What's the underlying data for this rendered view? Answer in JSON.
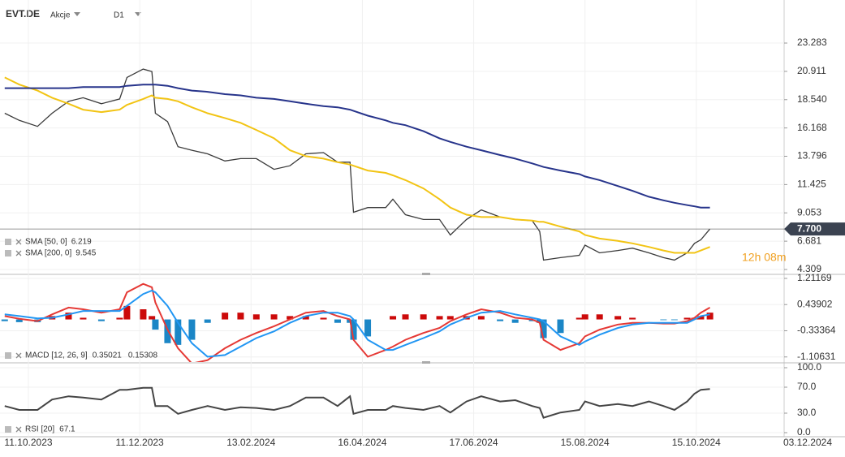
{
  "chart_data": [
    {
      "type": "line",
      "title": "EVT.DE",
      "subtitle": "Akcje",
      "timeframe": "D1",
      "x": [
        "2023-09-28",
        "2023-10-06",
        "2023-10-16",
        "2023-10-24",
        "2023-11-02",
        "2023-11-10",
        "2023-11-20",
        "2023-11-30",
        "2023-12-04",
        "2023-12-13",
        "2023-12-18",
        "2023-12-20",
        "2023-12-27",
        "2024-01-02",
        "2024-01-10",
        "2024-01-19",
        "2024-01-29",
        "2024-02-07",
        "2024-02-16",
        "2024-02-26",
        "2024-03-06",
        "2024-03-15",
        "2024-03-25",
        "2024-04-02",
        "2024-04-09",
        "2024-04-11",
        "2024-04-19",
        "2024-04-29",
        "2024-05-03",
        "2024-05-10",
        "2024-05-20",
        "2024-05-29",
        "2024-06-04",
        "2024-06-13",
        "2024-06-21",
        "2024-07-01",
        "2024-07-09",
        "2024-07-18",
        "2024-07-22",
        "2024-07-24",
        "2024-08-02",
        "2024-08-12",
        "2024-08-15",
        "2024-08-23",
        "2024-09-02",
        "2024-09-10",
        "2024-09-19",
        "2024-09-27",
        "2024-10-03",
        "2024-10-10",
        "2024-10-14",
        "2024-10-17",
        "2024-10-21"
      ],
      "series": [
        {
          "color": "#3a3a3a",
          "values": [
            17.4,
            16.8,
            16.3,
            17.4,
            18.4,
            18.7,
            18.2,
            18.6,
            20.4,
            21.1,
            20.9,
            17.4,
            16.7,
            14.6,
            14.3,
            14.0,
            13.4,
            13.6,
            13.6,
            12.7,
            13.0,
            14.0,
            14.1,
            13.3,
            13.3,
            9.1,
            9.5,
            9.5,
            10.2,
            8.9,
            8.5,
            8.5,
            7.2,
            8.5,
            9.3,
            8.7,
            8.5,
            8.4,
            7.5,
            5.1,
            5.3,
            5.5,
            6.35,
            5.7,
            5.9,
            6.1,
            5.7,
            5.3,
            5.1,
            5.7,
            6.5,
            6.8,
            7.7
          ]
        },
        {
          "name": "SMA [50, 0]",
          "last_value": 6.219,
          "color": "#f2c414",
          "values": [
            20.4,
            19.8,
            19.3,
            18.7,
            18.2,
            17.7,
            17.5,
            17.7,
            18.1,
            18.6,
            18.9,
            18.7,
            18.6,
            18.4,
            17.9,
            17.4,
            17.0,
            16.6,
            16.0,
            15.3,
            14.3,
            13.8,
            13.6,
            13.3,
            13.1,
            13.0,
            12.6,
            12.4,
            12.2,
            11.8,
            11.1,
            10.2,
            9.5,
            8.9,
            8.7,
            8.7,
            8.5,
            8.4,
            8.3,
            8.3,
            7.9,
            7.5,
            7.2,
            6.9,
            6.7,
            6.5,
            6.2,
            5.9,
            5.7,
            5.7,
            5.7,
            5.9,
            6.2
          ]
        },
        {
          "name": "SMA [200, 0]",
          "last_value": 9.545,
          "color": "#27348b",
          "values": [
            19.5,
            19.5,
            19.5,
            19.5,
            19.5,
            19.6,
            19.6,
            19.6,
            19.7,
            19.8,
            19.8,
            19.8,
            19.7,
            19.5,
            19.3,
            19.2,
            19.0,
            18.9,
            18.7,
            18.6,
            18.4,
            18.2,
            18.0,
            17.9,
            17.7,
            17.6,
            17.2,
            16.8,
            16.6,
            16.4,
            15.9,
            15.3,
            15.0,
            14.6,
            14.3,
            13.9,
            13.6,
            13.2,
            13.0,
            12.9,
            12.6,
            12.3,
            12.1,
            11.8,
            11.3,
            10.9,
            10.4,
            10.1,
            9.9,
            9.7,
            9.6,
            9.5,
            9.5
          ]
        }
      ],
      "last_price": {
        "value": 7.7,
        "label": "7.700"
      },
      "countdown": "12h 08m",
      "ylim": [
        3.9,
        26.89
      ],
      "yticks": [
        4.309,
        6.681,
        9.053,
        11.425,
        13.796,
        16.168,
        {
          "value": 18.54,
          "label": "18.540"
        },
        20.911,
        23.283
      ],
      "grid": true
    },
    {
      "type": "combo",
      "legend_label": "MACD [12, 26, 9]",
      "x": [
        "2023-09-28",
        "2023-10-06",
        "2023-10-16",
        "2023-10-24",
        "2023-11-02",
        "2023-11-10",
        "2023-11-20",
        "2023-11-30",
        "2023-12-04",
        "2023-12-13",
        "2023-12-18",
        "2023-12-20",
        "2023-12-27",
        "2024-01-02",
        "2024-01-10",
        "2024-01-19",
        "2024-01-29",
        "2024-02-07",
        "2024-02-16",
        "2024-02-26",
        "2024-03-06",
        "2024-03-15",
        "2024-03-25",
        "2024-04-02",
        "2024-04-09",
        "2024-04-11",
        "2024-04-19",
        "2024-04-29",
        "2024-05-03",
        "2024-05-10",
        "2024-05-20",
        "2024-05-29",
        "2024-06-04",
        "2024-06-13",
        "2024-06-21",
        "2024-07-01",
        "2024-07-09",
        "2024-07-18",
        "2024-07-22",
        "2024-07-24",
        "2024-08-02",
        "2024-08-12",
        "2024-08-15",
        "2024-08-23",
        "2024-09-02",
        "2024-09-10",
        "2024-09-19",
        "2024-09-27",
        "2024-10-03",
        "2024-10-10",
        "2024-10-14",
        "2024-10-17",
        "2024-10-21"
      ],
      "series": [
        {
          "kind": "bar",
          "color": "#cc0a0a",
          "color_negative": "#1b86c6",
          "values": [
            -0.05,
            -0.08,
            -0.08,
            0.1,
            0.2,
            0.05,
            -0.05,
            0.05,
            0.4,
            0.3,
            0.1,
            -0.3,
            -0.7,
            -0.75,
            -0.6,
            -0.1,
            0.2,
            0.2,
            0.15,
            0.15,
            0.1,
            0.1,
            0.05,
            -0.1,
            -0.1,
            -0.6,
            -0.5,
            0.0,
            0.1,
            0.15,
            0.15,
            0.1,
            0.1,
            0.1,
            0.1,
            -0.05,
            -0.1,
            -0.05,
            -0.1,
            -0.55,
            -0.4,
            0.05,
            0.15,
            0.15,
            0.1,
            0.05,
            0.0,
            -0.02,
            -0.02,
            0.05,
            0.05,
            0.1,
            0.2
          ]
        },
        {
          "kind": "line",
          "last_value": 0.35021,
          "color": "#e53935",
          "values": [
            0.1,
            0.02,
            -0.05,
            0.15,
            0.35,
            0.3,
            0.2,
            0.3,
            0.8,
            1.05,
            0.95,
            0.5,
            -0.3,
            -0.85,
            -1.3,
            -1.2,
            -0.85,
            -0.6,
            -0.4,
            -0.2,
            0.0,
            0.2,
            0.25,
            0.1,
            0.0,
            -0.6,
            -1.1,
            -0.9,
            -0.8,
            -0.6,
            -0.4,
            -0.25,
            -0.05,
            0.15,
            0.3,
            0.2,
            0.05,
            0.0,
            -0.1,
            -0.6,
            -0.9,
            -0.7,
            -0.5,
            -0.3,
            -0.15,
            -0.1,
            -0.1,
            -0.12,
            -0.12,
            -0.05,
            0.05,
            0.2,
            0.35
          ]
        },
        {
          "kind": "line",
          "last_value": 0.15308,
          "color": "#2196f3",
          "values": [
            0.15,
            0.1,
            0.03,
            0.05,
            0.15,
            0.25,
            0.25,
            0.25,
            0.4,
            0.75,
            0.85,
            0.8,
            0.4,
            -0.1,
            -0.7,
            -1.1,
            -1.05,
            -0.8,
            -0.55,
            -0.35,
            -0.1,
            0.1,
            0.2,
            0.2,
            0.1,
            0.0,
            -0.6,
            -0.9,
            -0.9,
            -0.75,
            -0.55,
            -0.35,
            -0.15,
            0.05,
            0.2,
            0.25,
            0.15,
            0.05,
            0.0,
            -0.05,
            -0.5,
            -0.75,
            -0.65,
            -0.45,
            -0.25,
            -0.15,
            -0.1,
            -0.1,
            -0.1,
            -0.1,
            0.0,
            0.1,
            0.15
          ]
        }
      ],
      "ylim": [
        -1.28,
        1.33
      ],
      "yticks": [
        -1.10631,
        -0.33364,
        0.43902,
        1.21169
      ],
      "grid": true
    },
    {
      "type": "line",
      "legend_label": "RSI [20]",
      "x": [
        "2023-09-28",
        "2023-10-06",
        "2023-10-16",
        "2023-10-24",
        "2023-11-02",
        "2023-11-10",
        "2023-11-20",
        "2023-11-30",
        "2023-12-04",
        "2023-12-13",
        "2023-12-18",
        "2023-12-20",
        "2023-12-27",
        "2024-01-02",
        "2024-01-10",
        "2024-01-19",
        "2024-01-29",
        "2024-02-07",
        "2024-02-16",
        "2024-02-26",
        "2024-03-06",
        "2024-03-15",
        "2024-03-25",
        "2024-04-02",
        "2024-04-09",
        "2024-04-11",
        "2024-04-19",
        "2024-04-29",
        "2024-05-03",
        "2024-05-10",
        "2024-05-20",
        "2024-05-29",
        "2024-06-04",
        "2024-06-13",
        "2024-06-21",
        "2024-07-01",
        "2024-07-09",
        "2024-07-18",
        "2024-07-22",
        "2024-07-24",
        "2024-08-02",
        "2024-08-12",
        "2024-08-15",
        "2024-08-23",
        "2024-09-02",
        "2024-09-10",
        "2024-09-19",
        "2024-09-27",
        "2024-10-03",
        "2024-10-10",
        "2024-10-14",
        "2024-10-17",
        "2024-10-21"
      ],
      "series": [
        {
          "last_value": 67.1,
          "color": "#454545",
          "values": [
            41,
            35,
            35,
            51,
            56,
            54,
            51,
            66,
            66,
            69,
            69,
            41,
            41,
            29,
            35,
            41,
            35,
            39,
            38,
            35,
            41,
            54,
            54,
            41,
            56,
            29,
            35,
            35,
            41,
            38,
            35,
            41,
            31,
            48,
            56,
            48,
            50,
            41,
            38,
            23,
            31,
            35,
            48,
            41,
            44,
            41,
            48,
            41,
            35,
            48,
            60,
            66,
            67.1
          ]
        }
      ],
      "ylim": [
        -6.25,
        107.5
      ],
      "yticks": [
        {
          "value": 0,
          "label": "0.0"
        },
        {
          "value": 30,
          "label": "30.0"
        },
        {
          "value": 70,
          "label": "70.0"
        },
        {
          "value": 100,
          "label": "100.0"
        }
      ],
      "grid": true,
      "xticks": [
        {
          "value": "2023-10-11",
          "label": "11.10.2023"
        },
        {
          "value": "2023-12-11",
          "label": "11.12.2023"
        },
        {
          "value": "2024-02-13",
          "label": "13.02.2024"
        },
        {
          "value": "2024-04-16",
          "label": "16.04.2024"
        },
        {
          "value": "2024-06-17",
          "label": "17.06.2024"
        },
        {
          "value": "2024-08-15",
          "label": "15.08.2024"
        },
        {
          "value": "2024-10-15",
          "label": "15.10.2024"
        },
        {
          "value": "2024-12-03",
          "label": "03.12.2024"
        }
      ]
    }
  ]
}
